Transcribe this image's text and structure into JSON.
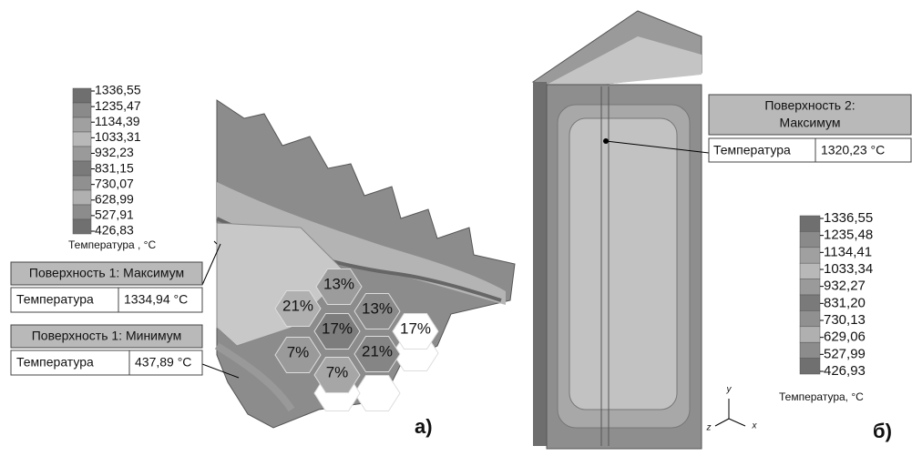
{
  "panel_a": {
    "legend": {
      "values": [
        "1336,55",
        "1235,47",
        "1134,39",
        "1033,31",
        "932,23",
        "831,15",
        "730,07",
        "628,99",
        "527,91",
        "426,83"
      ],
      "title": "Температура , °С"
    },
    "callouts": [
      {
        "title": "Поверхность 1: Максимум",
        "label": "Температура",
        "value": "1334,94 °С"
      },
      {
        "title": "Поверхность 1: Минимум",
        "label": "Температура",
        "value": "437,89 °С"
      }
    ],
    "percentages": [
      "13%",
      "21%",
      "13%",
      "17%",
      "17%",
      "7%",
      "21%",
      "7%"
    ],
    "label": "а)"
  },
  "panel_b": {
    "callout": {
      "title_lines": [
        "Поверхность 2:",
        "Максимум"
      ],
      "label": "Температура",
      "value": "1320,23 °С"
    },
    "legend": {
      "values": [
        "1336,55",
        "1235,48",
        "1134,41",
        "1033,34",
        "932,27",
        "831,20",
        "730,13",
        "629,06",
        "527,99",
        "426,93"
      ],
      "title": "Температура, °С"
    },
    "axes": [
      "y",
      "z",
      "x"
    ],
    "label": "б)"
  }
}
